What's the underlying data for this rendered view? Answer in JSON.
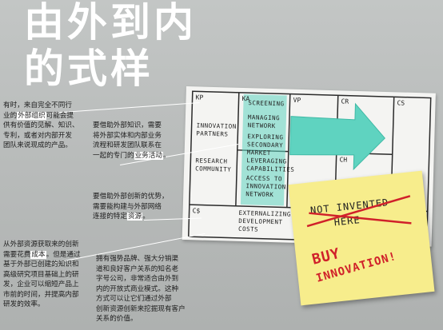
{
  "title": {
    "line1": "由外到内",
    "line2": "的式样"
  },
  "canvas": {
    "labels": {
      "kp": "KP",
      "ka": "KA",
      "vp": "VP",
      "cr": "CR",
      "cs_top": "CS",
      "ch": "CH",
      "cs": "C$"
    },
    "notes": {
      "innovation_partners": [
        "INNOVATION",
        "PARTNERS"
      ],
      "research_community": [
        "RESEARCH",
        "COMMUNITY"
      ],
      "screening": [
        "SCREENING"
      ],
      "managing_network": [
        "MANAGING",
        "NETWORK"
      ],
      "exploring_secondary": [
        "EXPLORING",
        "SECONDARY",
        "MARKET"
      ],
      "leveraging": [
        "LEVERAGING",
        "CAPABILITIES"
      ],
      "access_network": [
        "ACCESS TO",
        "INNOVATION",
        "NETWORK"
      ],
      "externalizing": [
        "EXTERNALIZING",
        "DEVELOPMENT",
        "COSTS"
      ]
    },
    "colors": {
      "teal": "#5fd3c0",
      "black": "#222222"
    }
  },
  "sticky": {
    "line1": "NOT INVENTED",
    "line2": "HERE",
    "buy": "BUY",
    "innovation": "INNOVATION!",
    "color": "#f7ed8c",
    "red": "#d0202a"
  },
  "text": {
    "p1": {
      "a": "有时，来自完全不同行",
      "b_pre": "业的",
      "b_hl": "外部组织",
      "b_post": "可能会提",
      "c": "供有价值的见解、知识、",
      "d": "专利，或者对内部开发",
      "e": "团队来说现成的产品。"
    },
    "p2": {
      "a": "要借助外部知识，需要",
      "b": "将外部实体和内部业务",
      "c": "流程和研发团队联系在",
      "d_pre": "一起的专门的",
      "d_hl": "业务活动",
      "d_post": "。"
    },
    "p3": {
      "a": "要借助外部创新的优势，",
      "b": "需要能构建与外部网络",
      "c_pre": "连接的特定",
      "c_hl": "资源",
      "c_post": "。"
    },
    "p4": {
      "a": "从外部资源获取来的创新",
      "b_pre": "需要花费",
      "b_hl": "成本",
      "b_post": "。但是通过",
      "c": "基于外部已创建的知识和",
      "d": "高级研究项目基础上的研",
      "e": "发，企业可以缩短产品上",
      "f": "市前的时间，并提高内部",
      "g": "研发的效率。"
    },
    "p5": {
      "a": "拥有强势品牌、强大分销渠",
      "b": "道和良好客户关系的知名老",
      "c": "字号公司，非常适合由外到",
      "d": "内的开放式商业模式。这种",
      "e": "方式可以让它们通过外部",
      "f": "创新资源创新来挖掘现有客户",
      "g": "关系的价值。"
    }
  }
}
